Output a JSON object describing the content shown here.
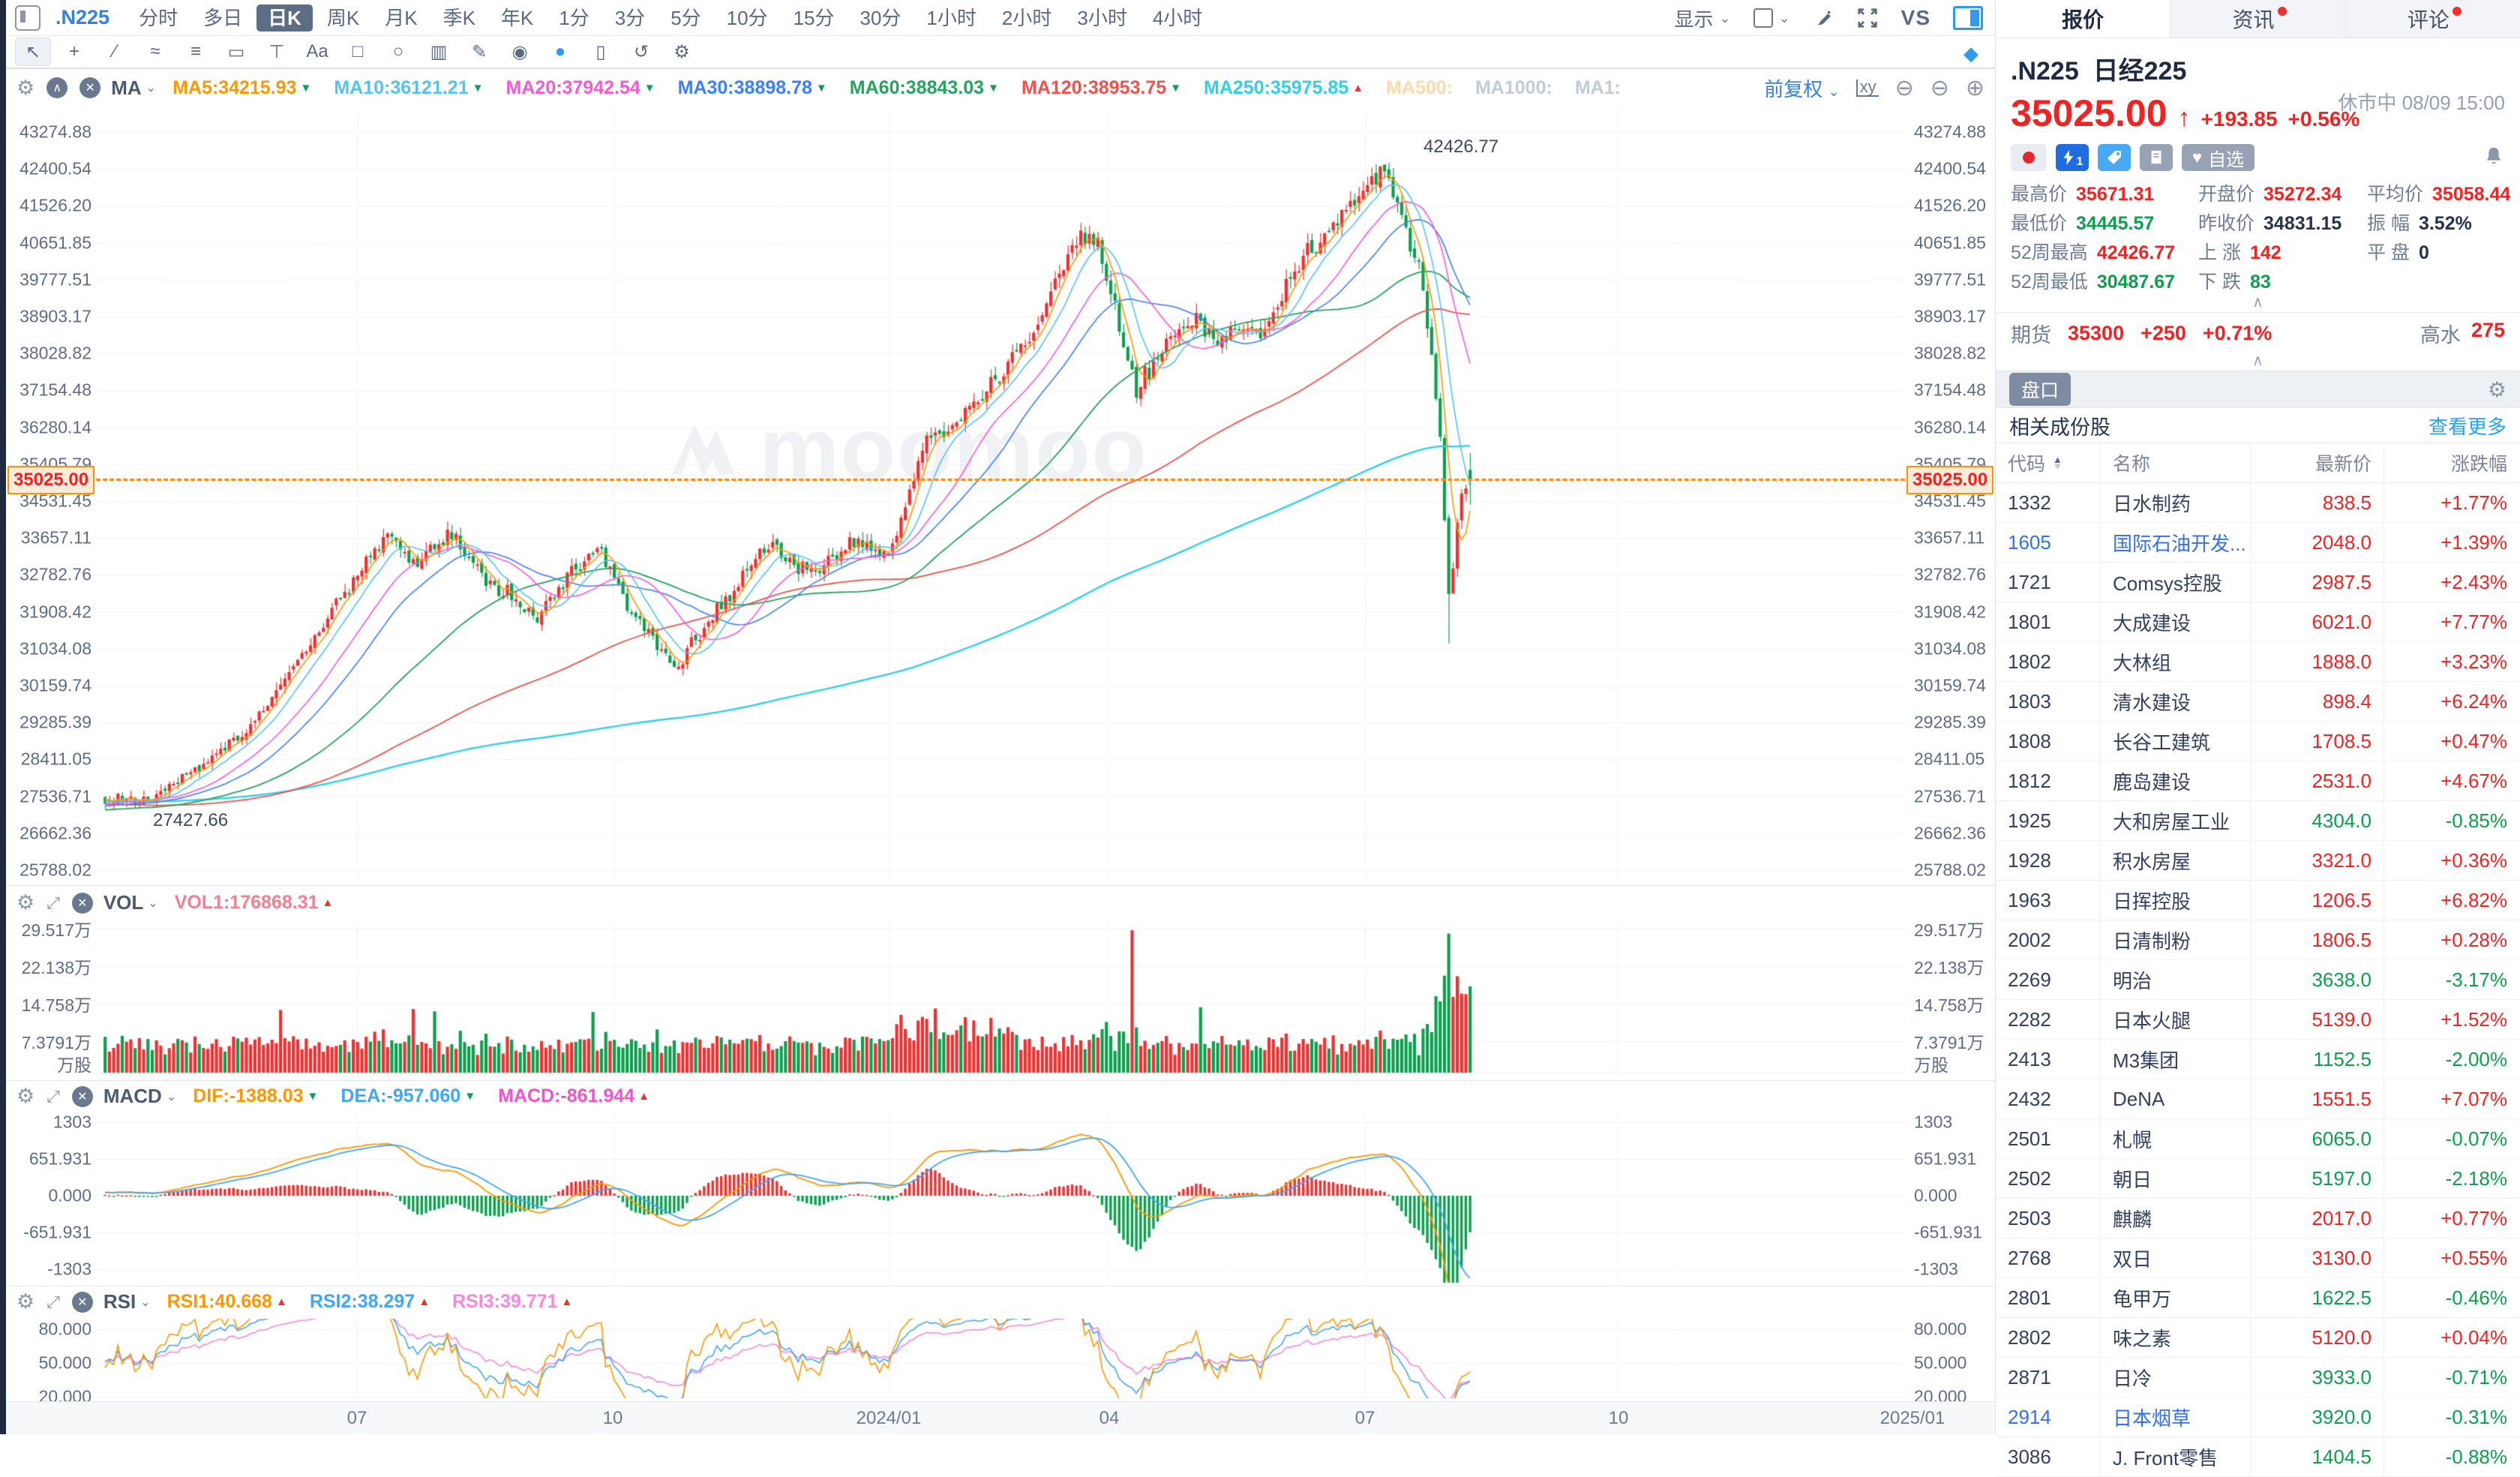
{
  "toolbar": {
    "symbol": ".N225",
    "timeframes": [
      "分时",
      "多日",
      "日K",
      "周K",
      "月K",
      "季K",
      "年K",
      "1分",
      "3分",
      "5分",
      "10分",
      "15分",
      "30分",
      "1小时",
      "2小时",
      "3小时",
      "4小时"
    ],
    "active_timeframe": "日K",
    "display_label": "显示",
    "vs_label": "VS",
    "adjust_label": "前复权"
  },
  "drawing_tools": [
    {
      "name": "cursor-icon",
      "glyph": "↖",
      "active": true
    },
    {
      "name": "crosshair-icon",
      "glyph": "+"
    },
    {
      "name": "trendline-icon",
      "glyph": "∕"
    },
    {
      "name": "channel-icon",
      "glyph": "≈"
    },
    {
      "name": "fibonacci-icon",
      "glyph": "≡"
    },
    {
      "name": "rect-draw-icon",
      "glyph": "▭"
    },
    {
      "name": "anchor-icon",
      "glyph": "⊤"
    },
    {
      "name": "text-tool-icon",
      "glyph": "Aa"
    },
    {
      "name": "comment-icon",
      "glyph": "□"
    },
    {
      "name": "search-icon",
      "glyph": "○"
    },
    {
      "name": "chart-style-icon",
      "glyph": "▥"
    },
    {
      "name": "pencil-icon",
      "glyph": "✎"
    },
    {
      "name": "eye-icon",
      "glyph": "◉"
    },
    {
      "name": "magic-icon",
      "glyph": "●",
      "color": "#2f9bf0"
    },
    {
      "name": "trash-icon",
      "glyph": "▯"
    },
    {
      "name": "undo-icon",
      "glyph": "↺"
    },
    {
      "name": "gear-icon",
      "glyph": "⚙"
    }
  ],
  "ma_row": {
    "label": "MA",
    "items": [
      {
        "text": "MA5:34215.93",
        "color": "#ff9700",
        "dir": "down"
      },
      {
        "text": "MA10:36121.21",
        "color": "#54c3f1",
        "dir": "down"
      },
      {
        "text": "MA20:37942.54",
        "color": "#f659d8",
        "dir": "down"
      },
      {
        "text": "MA30:38898.78",
        "color": "#3d7eff",
        "dir": "down"
      },
      {
        "text": "MA60:38843.03",
        "color": "#23a55e",
        "dir": "down"
      },
      {
        "text": "MA120:38953.75",
        "color": "#f0524c",
        "dir": "down"
      },
      {
        "text": "MA250:35975.85",
        "color": "#2fd0e8",
        "dir": "up"
      },
      {
        "text": "MA500:",
        "color": "#ffd9ae",
        "dir": ""
      },
      {
        "text": "MA1000:",
        "color": "#c3cbd6",
        "dir": ""
      },
      {
        "text": "MA1:",
        "color": "#c3cbd6",
        "dir": ""
      }
    ]
  },
  "vol_pane": {
    "name": "VOL",
    "items": [
      {
        "text": "VOL1:176868.31",
        "color": "#f2808f",
        "dir": "up"
      }
    ],
    "axis": [
      "29.517万",
      "22.138万",
      "14.758万",
      "7.3791万"
    ],
    "unit": "万股"
  },
  "macd_pane": {
    "name": "MACD",
    "items": [
      {
        "text": "DIF:-1388.03",
        "color": "#ff9700",
        "dir": "down"
      },
      {
        "text": "DEA:-957.060",
        "color": "#41a7f2",
        "dir": "down"
      },
      {
        "text": "MACD:-861.944",
        "color": "#f253cf",
        "dir": "up"
      }
    ],
    "axis": [
      "1303",
      "651.931",
      "0.000",
      "-651.931",
      "-1303"
    ]
  },
  "rsi_pane": {
    "name": "RSI",
    "items": [
      {
        "text": "RSI1:40.668",
        "color": "#ff9700",
        "dir": "up"
      },
      {
        "text": "RSI2:38.297",
        "color": "#41a7f2",
        "dir": "up"
      },
      {
        "text": "RSI3:39.771",
        "color": "#f887dd",
        "dir": "up"
      }
    ],
    "axis": [
      "80.000",
      "50.000",
      "20.000"
    ]
  },
  "chart": {
    "price_axis": [
      "43274.88",
      "42400.54",
      "41526.20",
      "40651.85",
      "39777.51",
      "38903.17",
      "38028.82",
      "37154.48",
      "36280.14",
      "35405.79",
      "34531.45",
      "33657.11",
      "32782.76",
      "31908.42",
      "31034.08",
      "30159.74",
      "29285.39",
      "28411.05",
      "27536.71",
      "26662.36",
      "25788.02"
    ],
    "current_price_tag": "35025.00",
    "high_annotation": "42426.77",
    "low_annotation": "27427.66",
    "time_axis": [
      "07",
      "10",
      "2024/01",
      "04",
      "07",
      "10",
      "2025/01"
    ],
    "watermark": "moomoo"
  },
  "chart_data": {
    "type": "candlestick",
    "title": ".N225 日经225 日K",
    "ylim": [
      25788.02,
      43274.88
    ],
    "last_close": 35025.0,
    "prev_close": 34831.15,
    "last_open": 35272.34,
    "last_high": 35671.31,
    "last_low": 34445.57,
    "peak_high": 42426.77,
    "crash_low": 31160,
    "visible_points": 320,
    "pre_anchors": [
      [
        -0.41,
        28100
      ],
      [
        -0.3,
        27500
      ],
      [
        -0.15,
        27100
      ],
      [
        -0.05,
        27250
      ],
      [
        0,
        27480
      ]
    ],
    "anchors": [
      [
        0.0,
        27500
      ],
      [
        0.03,
        27460
      ],
      [
        0.058,
        28050
      ],
      [
        0.1,
        29000
      ],
      [
        0.14,
        30800
      ],
      [
        0.175,
        32400
      ],
      [
        0.205,
        33750
      ],
      [
        0.225,
        33000
      ],
      [
        0.25,
        33800
      ],
      [
        0.28,
        32600
      ],
      [
        0.3,
        32200
      ],
      [
        0.315,
        31700
      ],
      [
        0.34,
        32900
      ],
      [
        0.36,
        33400
      ],
      [
        0.385,
        31900
      ],
      [
        0.415,
        30600
      ],
      [
        0.44,
        31600
      ],
      [
        0.46,
        32500
      ],
      [
        0.48,
        33500
      ],
      [
        0.5,
        33100
      ],
      [
        0.52,
        32900
      ],
      [
        0.545,
        33500
      ],
      [
        0.575,
        33300
      ],
      [
        0.6,
        36000
      ],
      [
        0.62,
        36200
      ],
      [
        0.64,
        36900
      ],
      [
        0.67,
        38200
      ],
      [
        0.69,
        39100
      ],
      [
        0.7,
        40100
      ],
      [
        0.715,
        40850
      ],
      [
        0.73,
        40400
      ],
      [
        0.755,
        37100
      ],
      [
        0.775,
        38300
      ],
      [
        0.8,
        38900
      ],
      [
        0.815,
        38200
      ],
      [
        0.83,
        38700
      ],
      [
        0.85,
        38600
      ],
      [
        0.865,
        39600
      ],
      [
        0.88,
        40400
      ],
      [
        0.9,
        41000
      ],
      [
        0.92,
        41800
      ],
      [
        0.937,
        42300
      ],
      [
        0.95,
        41200
      ],
      [
        0.962,
        40100
      ],
      [
        0.972,
        37800
      ],
      [
        0.978,
        35900
      ],
      [
        0.985,
        31900
      ],
      [
        0.99,
        34100
      ],
      [
        0.995,
        34700
      ],
      [
        1.0,
        35025
      ]
    ],
    "peak_t": 0.937,
    "crash_t": 0.985,
    "volume": {
      "unit": "万股",
      "max_axis": 29.517,
      "spike_t": 0.753,
      "spike_value": 29.2,
      "crash_spike": 28.5,
      "last_value": 17.69
    },
    "macd": {
      "fast": 12,
      "slow": 26,
      "signal": 9,
      "axis_max": 1303
    },
    "rsi_periods": [
      6,
      12,
      24
    ]
  },
  "side_panel": {
    "tabs": [
      {
        "label": "报价",
        "active": true,
        "dot": false
      },
      {
        "label": "资讯",
        "active": false,
        "dot": true
      },
      {
        "label": "评论",
        "active": false,
        "dot": true
      }
    ],
    "symbol": ".N225",
    "name": "日经225",
    "price": "35025.00",
    "change": "+193.85",
    "change_pct": "+0.56%",
    "market_status": "休市中 08/09 15:00",
    "watchlist_label": "自选",
    "lv_badge": "1",
    "stats": [
      {
        "label": "最高价",
        "value": "35671.31",
        "color": "red"
      },
      {
        "label": "开盘价",
        "value": "35272.34",
        "color": "red"
      },
      {
        "label": "平均价",
        "value": "35058.44",
        "color": "red"
      },
      {
        "label": "最低价",
        "value": "34445.57",
        "color": "green"
      },
      {
        "label": "昨收价",
        "value": "34831.15",
        "color": "dark"
      },
      {
        "label": "振 幅",
        "value": "3.52%",
        "color": "dark"
      },
      {
        "label": "52周最高",
        "value": "42426.77",
        "color": "red"
      },
      {
        "label": "上 涨",
        "value": "142",
        "color": "red"
      },
      {
        "label": "平 盘",
        "value": "0",
        "color": "dark"
      },
      {
        "label": "52周最低",
        "value": "30487.67",
        "color": "green"
      },
      {
        "label": "下 跌",
        "value": "83",
        "color": "green"
      },
      {
        "label": "",
        "value": "",
        "color": "dark"
      }
    ],
    "futures": {
      "label": "期货",
      "price": "35300",
      "change": "+250",
      "pct": "+0.71%",
      "premium_label": "高水",
      "premium": "275"
    },
    "depth_label": "盘口",
    "related_title": "相关成份股",
    "more_link": "查看更多",
    "table": {
      "headers": [
        "代码",
        "名称",
        "最新价",
        "涨跌幅"
      ],
      "rows": [
        {
          "code": "1332",
          "name": "日水制药",
          "price": "838.5",
          "pct": "+1.77%",
          "up": true,
          "link": false
        },
        {
          "code": "1605",
          "name": "国际石油开发...",
          "price": "2048.0",
          "pct": "+1.39%",
          "up": true,
          "link": true
        },
        {
          "code": "1721",
          "name": "Comsys控股",
          "price": "2987.5",
          "pct": "+2.43%",
          "up": true,
          "link": false
        },
        {
          "code": "1801",
          "name": "大成建设",
          "price": "6021.0",
          "pct": "+7.77%",
          "up": true,
          "link": false
        },
        {
          "code": "1802",
          "name": "大林组",
          "price": "1888.0",
          "pct": "+3.23%",
          "up": true,
          "link": false
        },
        {
          "code": "1803",
          "name": "清水建设",
          "price": "898.4",
          "pct": "+6.24%",
          "up": true,
          "link": false
        },
        {
          "code": "1808",
          "name": "长谷工建筑",
          "price": "1708.5",
          "pct": "+0.47%",
          "up": true,
          "link": false
        },
        {
          "code": "1812",
          "name": "鹿岛建设",
          "price": "2531.0",
          "pct": "+4.67%",
          "up": true,
          "link": false
        },
        {
          "code": "1925",
          "name": "大和房屋工业",
          "price": "4304.0",
          "pct": "-0.85%",
          "up": false,
          "link": false
        },
        {
          "code": "1928",
          "name": "积水房屋",
          "price": "3321.0",
          "pct": "+0.36%",
          "up": true,
          "link": false
        },
        {
          "code": "1963",
          "name": "日挥控股",
          "price": "1206.5",
          "pct": "+6.82%",
          "up": true,
          "link": false
        },
        {
          "code": "2002",
          "name": "日清制粉",
          "price": "1806.5",
          "pct": "+0.28%",
          "up": true,
          "link": false
        },
        {
          "code": "2269",
          "name": "明治",
          "price": "3638.0",
          "pct": "-3.17%",
          "up": false,
          "link": false
        },
        {
          "code": "2282",
          "name": "日本火腿",
          "price": "5139.0",
          "pct": "+1.52%",
          "up": true,
          "link": false
        },
        {
          "code": "2413",
          "name": "M3集团",
          "price": "1152.5",
          "pct": "-2.00%",
          "up": false,
          "link": false
        },
        {
          "code": "2432",
          "name": "DeNA",
          "price": "1551.5",
          "pct": "+7.07%",
          "up": true,
          "link": false
        },
        {
          "code": "2501",
          "name": "札幌",
          "price": "6065.0",
          "pct": "-0.07%",
          "up": false,
          "link": false
        },
        {
          "code": "2502",
          "name": "朝日",
          "price": "5197.0",
          "pct": "-2.18%",
          "up": false,
          "link": false
        },
        {
          "code": "2503",
          "name": "麒麟",
          "price": "2017.0",
          "pct": "+0.77%",
          "up": true,
          "link": false
        },
        {
          "code": "2768",
          "name": "双日",
          "price": "3130.0",
          "pct": "+0.55%",
          "up": true,
          "link": false
        },
        {
          "code": "2801",
          "name": "龟甲万",
          "price": "1622.5",
          "pct": "-0.46%",
          "up": false,
          "link": false
        },
        {
          "code": "2802",
          "name": "味之素",
          "price": "5120.0",
          "pct": "+0.04%",
          "up": true,
          "link": false
        },
        {
          "code": "2871",
          "name": "日冷",
          "price": "3933.0",
          "pct": "-0.71%",
          "up": false,
          "link": false
        },
        {
          "code": "2914",
          "name": "日本烟草",
          "price": "3920.0",
          "pct": "-0.31%",
          "up": false,
          "link": true
        },
        {
          "code": "3086",
          "name": "J. Front零售",
          "price": "1404.5",
          "pct": "-0.88%",
          "up": false,
          "link": false
        }
      ]
    }
  },
  "colors": {
    "up": "#f22f2f",
    "down": "#0ca04e",
    "accent_blue": "#3381e3",
    "tag_orange": "#ff9100",
    "grid": "#f1f3f6"
  }
}
